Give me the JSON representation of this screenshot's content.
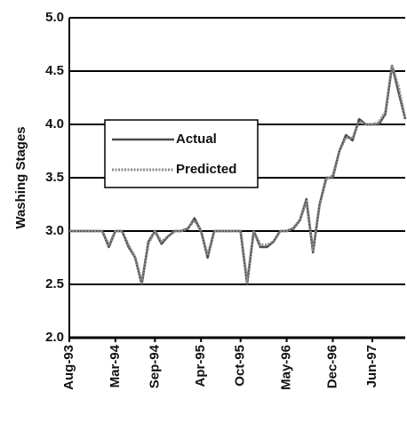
{
  "chart_data": {
    "type": "line",
    "ylabel": "Washing Stages",
    "categories": [
      "Aug-93",
      null,
      null,
      null,
      null,
      null,
      null,
      "Mar-94",
      null,
      null,
      null,
      null,
      null,
      "Sep-94",
      null,
      null,
      null,
      null,
      null,
      null,
      "Apr-95",
      null,
      null,
      null,
      null,
      null,
      "Oct-95",
      null,
      null,
      null,
      null,
      null,
      null,
      "May-96",
      null,
      null,
      null,
      null,
      null,
      null,
      "Dec-96",
      null,
      null,
      null,
      null,
      null,
      "Jun-97",
      null,
      null,
      null,
      null,
      null
    ],
    "series": [
      {
        "name": "Actual",
        "color": "#4a4a4a",
        "values": [
          3.0,
          3.0,
          3.0,
          3.0,
          3.0,
          3.0,
          2.85,
          3.0,
          3.0,
          2.85,
          2.75,
          2.5,
          2.9,
          3.0,
          2.88,
          2.95,
          3.0,
          3.0,
          3.02,
          3.12,
          3.0,
          2.75,
          3.0,
          3.0,
          3.0,
          3.0,
          3.0,
          2.5,
          3.0,
          2.85,
          2.85,
          2.9,
          3.0,
          3.0,
          3.02,
          3.1,
          3.3,
          2.8,
          3.25,
          3.5,
          3.5,
          3.75,
          3.9,
          3.85,
          4.05,
          4.0,
          4.0,
          4.0,
          4.1,
          4.55,
          4.3,
          4.05
        ]
      },
      {
        "name": "Predicted",
        "color": "#8a8a8a",
        "values": [
          3.0,
          3.0,
          3.0,
          3.0,
          3.0,
          3.0,
          2.87,
          3.0,
          3.0,
          2.87,
          2.75,
          2.52,
          2.88,
          3.0,
          2.9,
          2.95,
          3.0,
          3.0,
          3.03,
          3.1,
          3.0,
          2.77,
          3.0,
          3.0,
          3.0,
          3.0,
          3.0,
          2.52,
          3.0,
          2.87,
          2.87,
          2.9,
          3.0,
          3.0,
          3.03,
          3.1,
          3.28,
          2.82,
          3.25,
          3.48,
          3.52,
          3.75,
          3.88,
          3.87,
          4.03,
          4.0,
          4.0,
          4.02,
          4.12,
          4.55,
          4.35,
          4.05
        ]
      }
    ],
    "ylim": [
      2,
      5
    ],
    "yticks": [
      {
        "value": 2,
        "label": "2.0"
      },
      2.5,
      {
        "value": 3,
        "label": "3.0"
      },
      3.5,
      {
        "value": 4,
        "label": "4.0"
      },
      4.5,
      {
        "value": 5,
        "label": "5.0"
      }
    ],
    "grid": true,
    "legend": "center left"
  }
}
